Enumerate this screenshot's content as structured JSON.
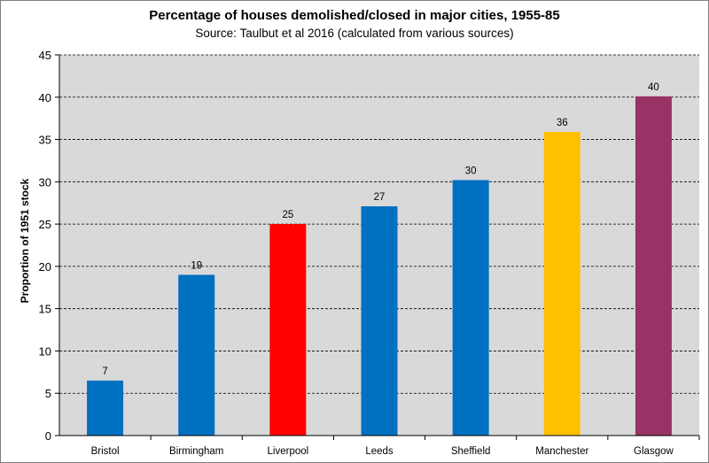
{
  "chart_data": {
    "type": "bar",
    "title": "Percentage of houses demolished/closed in major cities, 1955-85",
    "subtitle": "Source: Taulbut et al 2016 (calculated from various sources)",
    "xlabel": "",
    "ylabel": "Proportion of 1951 stock",
    "ylim": [
      0,
      45
    ],
    "yticks": [
      0,
      5,
      10,
      15,
      20,
      25,
      30,
      35,
      40,
      45
    ],
    "grid": "horizontal dashed",
    "legend": "none",
    "plot_background": "#d9d9d9",
    "categories": [
      "Bristol",
      "Birmingham",
      "Liverpool",
      "Leeds",
      "Sheffield",
      "Manchester",
      "Glasgow"
    ],
    "values": [
      6.5,
      19,
      25,
      27.1,
      30.2,
      35.9,
      40.1
    ],
    "data_labels": [
      "7",
      "19",
      "25",
      "27",
      "30",
      "36",
      "40"
    ],
    "colors": [
      "#0070c0",
      "#0070c0",
      "#ff0000",
      "#0070c0",
      "#0070c0",
      "#ffc000",
      "#993366"
    ]
  }
}
